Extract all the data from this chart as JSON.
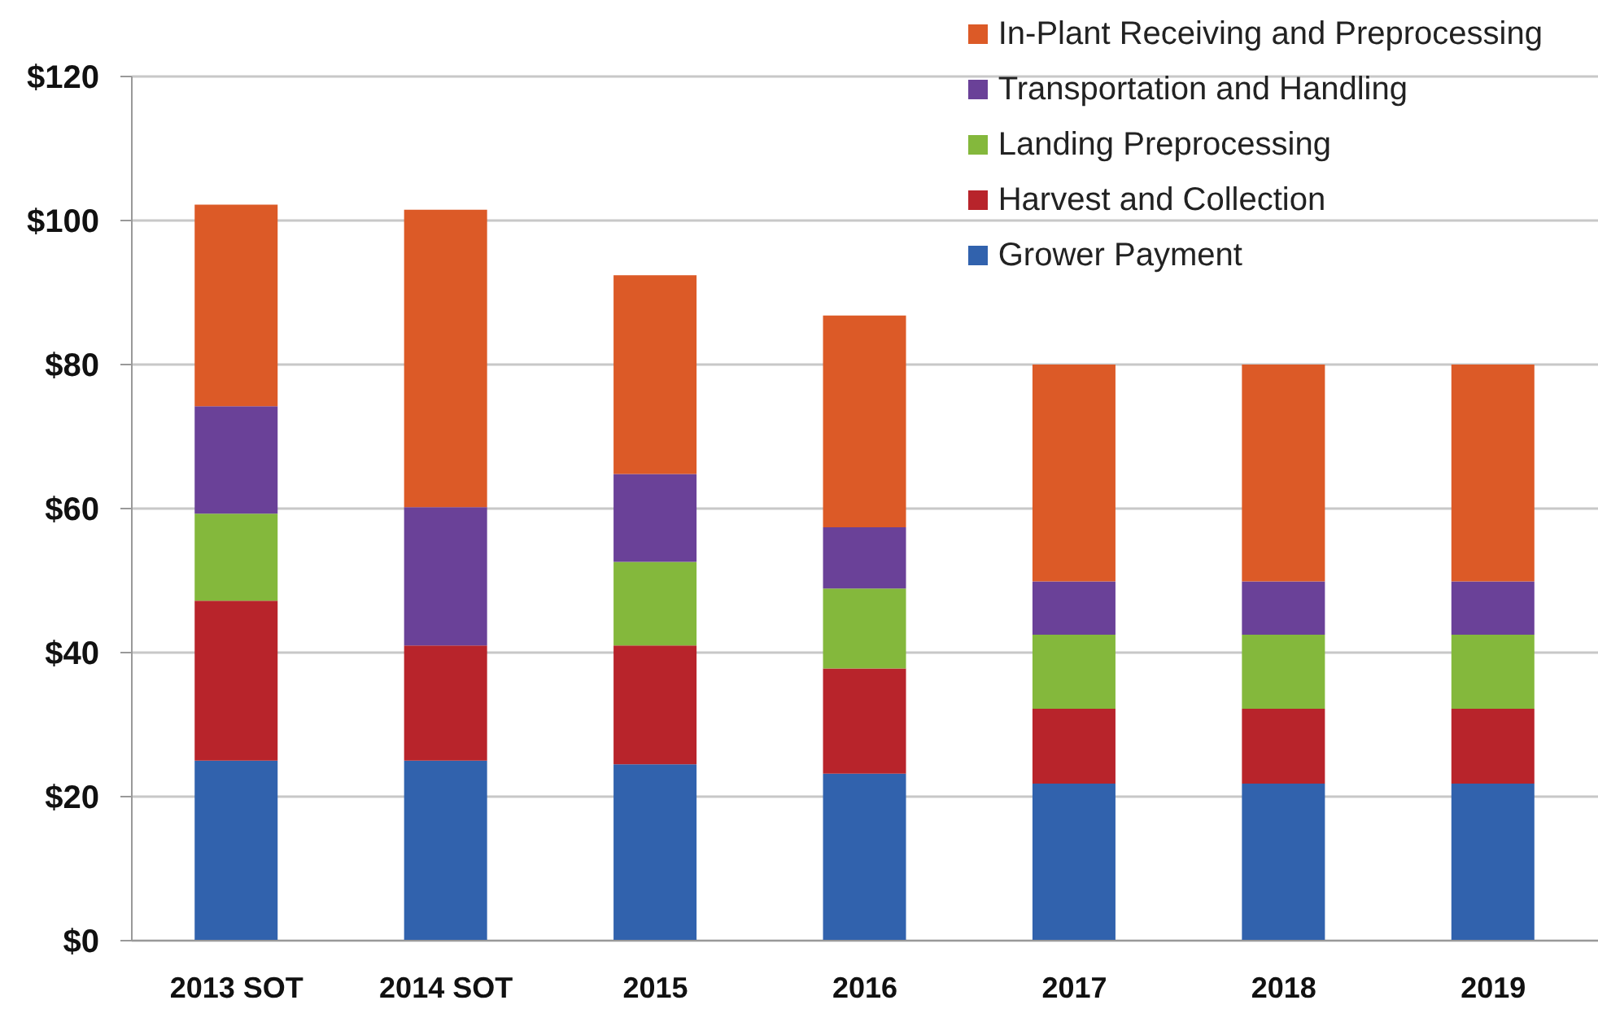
{
  "chart_data": {
    "type": "bar",
    "stacked": true,
    "categories": [
      "2013 SOT",
      "2014 SOT",
      "2015",
      "2016",
      "2017",
      "2018",
      "2019"
    ],
    "series": [
      {
        "name": "Grower Payment",
        "color": "#3162ad",
        "values": [
          25.0,
          25.0,
          24.5,
          23.2,
          21.8,
          21.8,
          21.8
        ]
      },
      {
        "name": "Harvest and Collection",
        "color": "#b8242b",
        "values": [
          22.2,
          16.0,
          16.5,
          14.6,
          10.4,
          10.4,
          10.4
        ]
      },
      {
        "name": "Landing Preprocessing",
        "color": "#84b83c",
        "values": [
          12.1,
          0,
          11.6,
          11.1,
          10.3,
          10.3,
          10.3
        ]
      },
      {
        "name": "Transportation and Handling",
        "color": "#6a4198",
        "values": [
          14.9,
          19.2,
          12.2,
          8.5,
          7.4,
          7.4,
          7.4
        ]
      },
      {
        "name": "In-Plant Receiving and Preprocessing",
        "color": "#dc5a27",
        "values": [
          28.0,
          41.3,
          27.6,
          29.4,
          30.1,
          30.1,
          30.1
        ]
      }
    ],
    "ylim": [
      0,
      120
    ],
    "yticks": [
      {
        "value": 0,
        "label": "$0"
      },
      {
        "value": 20,
        "label": "$20"
      },
      {
        "value": 40,
        "label": "$40"
      },
      {
        "value": 60,
        "label": "$60"
      },
      {
        "value": 80,
        "label": "$80"
      },
      {
        "value": 100,
        "label": "$100"
      },
      {
        "value": 120,
        "label": "$120"
      }
    ],
    "grid": "y",
    "legend": "top right"
  }
}
